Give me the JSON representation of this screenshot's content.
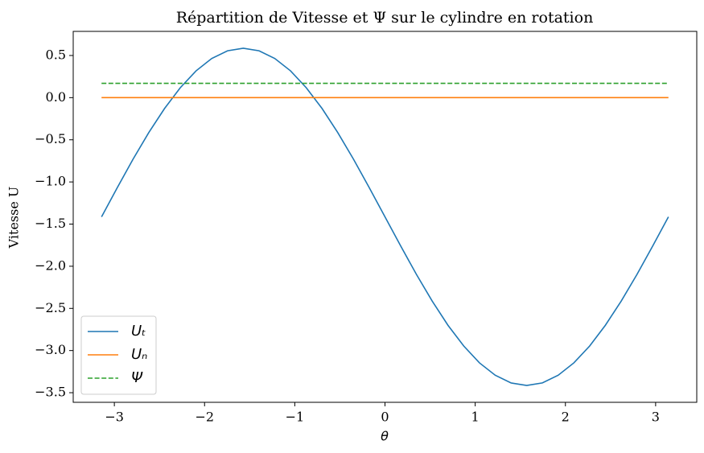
{
  "chart_data": {
    "type": "line",
    "title": "Répartition de Vitesse et Ψ sur le cylindre en rotation",
    "xlabel": "θ",
    "ylabel": "Vitesse U",
    "x": [
      -3.142,
      -2.967,
      -2.793,
      -2.618,
      -2.443,
      -2.269,
      -2.094,
      -1.92,
      -1.745,
      -1.571,
      -1.396,
      -1.222,
      -1.047,
      -0.873,
      -0.698,
      -0.524,
      -0.349,
      -0.175,
      0,
      0.175,
      0.349,
      0.524,
      0.698,
      0.873,
      1.047,
      1.222,
      1.396,
      1.571,
      1.745,
      1.92,
      2.094,
      2.269,
      2.443,
      2.618,
      2.793,
      2.967,
      3.142
    ],
    "series": [
      {
        "name": "Uₜ",
        "color": "#1f77b4",
        "dash": false,
        "values": [
          -1.414,
          -1.067,
          -0.73,
          -0.414,
          -0.128,
          0.118,
          0.318,
          0.465,
          0.556,
          0.586,
          0.556,
          0.465,
          0.318,
          0.118,
          -0.128,
          -0.414,
          -0.73,
          -1.067,
          -1.414,
          -1.761,
          -2.098,
          -2.414,
          -2.7,
          -2.946,
          -3.146,
          -3.293,
          -3.384,
          -3.414,
          -3.384,
          -3.293,
          -3.146,
          -2.946,
          -2.7,
          -2.414,
          -2.098,
          -1.761,
          -1.414
        ]
      },
      {
        "name": "Uₙ",
        "color": "#ff7f0e",
        "dash": false,
        "values": [
          0,
          0,
          0,
          0,
          0,
          0,
          0,
          0,
          0,
          0,
          0,
          0,
          0,
          0,
          0,
          0,
          0,
          0,
          0,
          0,
          0,
          0,
          0,
          0,
          0,
          0,
          0,
          0,
          0,
          0,
          0,
          0,
          0,
          0,
          0,
          0,
          0
        ]
      },
      {
        "name": "Ψ",
        "color": "#2ca02c",
        "dash": true,
        "values": [
          0.17,
          0.17,
          0.17,
          0.17,
          0.17,
          0.17,
          0.17,
          0.17,
          0.17,
          0.17,
          0.17,
          0.17,
          0.17,
          0.17,
          0.17,
          0.17,
          0.17,
          0.17,
          0.17,
          0.17,
          0.17,
          0.17,
          0.17,
          0.17,
          0.17,
          0.17,
          0.17,
          0.17,
          0.17,
          0.17,
          0.17,
          0.17,
          0.17,
          0.17,
          0.17,
          0.17,
          0.17
        ]
      }
    ],
    "xlim": [
      -3.456,
      3.456
    ],
    "ylim": [
      -3.614,
      0.786
    ],
    "xticks": [
      {
        "value": -3,
        "label": "−3"
      },
      {
        "value": -2,
        "label": "−2"
      },
      {
        "value": -1,
        "label": "−1"
      },
      0,
      1,
      2,
      3
    ],
    "yticks": [
      0.5,
      {
        "value": 0,
        "label": "0.0"
      },
      {
        "value": -0.5,
        "label": "−0.5"
      },
      {
        "value": -1,
        "label": "−1.0"
      },
      {
        "value": -1.5,
        "label": "−1.5"
      },
      {
        "value": -2,
        "label": "−2.0"
      },
      {
        "value": -2.5,
        "label": "−2.5"
      },
      {
        "value": -3,
        "label": "−3.0"
      },
      {
        "value": -3.5,
        "label": "−3.5"
      }
    ],
    "legend": "lower left",
    "grid": false
  }
}
